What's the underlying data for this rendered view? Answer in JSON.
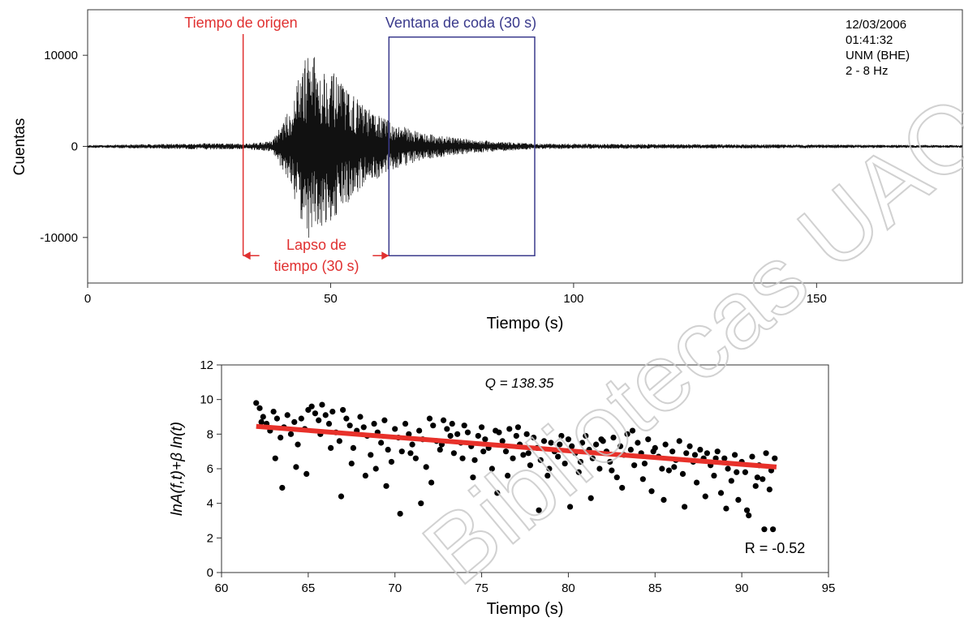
{
  "chart_data": [
    {
      "type": "line",
      "ylabel": "Cuentas",
      "xlabel": "Tiempo (s)",
      "xlim": [
        0,
        180
      ],
      "ylim": [
        -15000,
        15000
      ],
      "x_ticks": [
        0,
        50,
        100,
        150
      ],
      "y_ticks": [
        -10000,
        0,
        10000
      ],
      "x_tick_labels": [
        "0",
        "50",
        "100",
        "150"
      ],
      "y_tick_labels": [
        "-10000",
        "0",
        "10000"
      ],
      "grid": false,
      "info_lines": [
        "12/03/2006",
        "01:41:32",
        "UNM (BHE)",
        "2 - 8 Hz"
      ],
      "origin_time": {
        "x": 32,
        "label": "Tiempo de origen",
        "color": "#e03030"
      },
      "coda_window": {
        "x_start": 62,
        "x_end": 92,
        "y_low": -12000,
        "y_high": 12000,
        "label": "Ventana de coda (30 s)",
        "color": "#3a3a8c"
      },
      "lapse": {
        "x_start": 32,
        "x_end": 62,
        "y": -12000,
        "label_line1": "Lapso de",
        "label_line2": "tiempo (30 s)",
        "color": "#e03030"
      },
      "trace_envelope": {
        "x": [
          0,
          25,
          32,
          38,
          42,
          44,
          46,
          48,
          50,
          52,
          55,
          58,
          60,
          62,
          66,
          70,
          75,
          80,
          86,
          92,
          180
        ],
        "amplitude": [
          150,
          350,
          300,
          600,
          4500,
          9000,
          10500,
          9000,
          8500,
          7000,
          5500,
          4000,
          3500,
          2800,
          2000,
          1400,
          1000,
          700,
          500,
          300,
          150
        ]
      }
    },
    {
      "type": "scatter",
      "title": "Q = 138.35",
      "annotation": "R = -0.52",
      "ylabel": "lnA(f,t)+β ln(t)",
      "xlabel": "Tiempo (s)",
      "xlim": [
        60,
        95
      ],
      "ylim": [
        0,
        12
      ],
      "x_ticks": [
        60,
        65,
        70,
        75,
        80,
        85,
        90,
        95
      ],
      "y_ticks": [
        0,
        2,
        4,
        6,
        8,
        10,
        12
      ],
      "x_tick_labels": [
        "60",
        "65",
        "70",
        "75",
        "80",
        "85",
        "90",
        "95"
      ],
      "y_tick_labels": [
        "0",
        "2",
        "4",
        "6",
        "8",
        "10",
        "12"
      ],
      "grid": false,
      "fit_line": {
        "x": [
          62,
          92
        ],
        "y": [
          8.45,
          6.1
        ],
        "color": "#e8312a"
      },
      "points": [
        [
          62.0,
          9.8
        ],
        [
          62.2,
          9.5
        ],
        [
          62.4,
          9.0
        ],
        [
          62.6,
          8.6
        ],
        [
          62.8,
          8.2
        ],
        [
          63.0,
          9.3
        ],
        [
          63.2,
          8.9
        ],
        [
          63.4,
          7.8
        ],
        [
          63.6,
          8.4
        ],
        [
          63.8,
          9.1
        ],
        [
          64.0,
          8.0
        ],
        [
          64.2,
          8.7
        ],
        [
          64.4,
          7.4
        ],
        [
          64.6,
          8.9
        ],
        [
          64.8,
          8.3
        ],
        [
          65.0,
          9.4
        ],
        [
          65.2,
          9.6
        ],
        [
          65.4,
          9.2
        ],
        [
          65.6,
          8.8
        ],
        [
          65.8,
          9.7
        ],
        [
          66.0,
          9.1
        ],
        [
          66.2,
          8.6
        ],
        [
          66.4,
          9.3
        ],
        [
          66.6,
          8.1
        ],
        [
          66.8,
          7.6
        ],
        [
          67.0,
          9.4
        ],
        [
          67.2,
          8.9
        ],
        [
          67.4,
          8.5
        ],
        [
          67.6,
          7.2
        ],
        [
          67.8,
          8.2
        ],
        [
          68.0,
          9.0
        ],
        [
          68.2,
          8.4
        ],
        [
          68.4,
          7.9
        ],
        [
          68.6,
          6.8
        ],
        [
          68.8,
          8.6
        ],
        [
          69.0,
          8.1
        ],
        [
          69.2,
          7.5
        ],
        [
          69.4,
          8.8
        ],
        [
          69.6,
          7.1
        ],
        [
          69.8,
          6.4
        ],
        [
          70.0,
          8.3
        ],
        [
          70.2,
          7.8
        ],
        [
          70.4,
          7.0
        ],
        [
          70.6,
          8.6
        ],
        [
          70.8,
          8.0
        ],
        [
          71.0,
          7.4
        ],
        [
          71.2,
          6.6
        ],
        [
          71.4,
          8.2
        ],
        [
          71.6,
          7.7
        ],
        [
          71.8,
          6.1
        ],
        [
          72.0,
          8.9
        ],
        [
          72.2,
          8.5
        ],
        [
          72.4,
          7.6
        ],
        [
          72.6,
          7.1
        ],
        [
          72.8,
          8.8
        ],
        [
          73.0,
          8.3
        ],
        [
          73.2,
          7.9
        ],
        [
          73.4,
          6.9
        ],
        [
          73.6,
          8.0
        ],
        [
          73.8,
          7.5
        ],
        [
          74.0,
          8.5
        ],
        [
          74.2,
          8.1
        ],
        [
          74.4,
          7.3
        ],
        [
          74.6,
          6.5
        ],
        [
          74.8,
          7.9
        ],
        [
          75.0,
          8.4
        ],
        [
          75.2,
          7.7
        ],
        [
          75.4,
          7.2
        ],
        [
          75.6,
          6.0
        ],
        [
          75.8,
          8.2
        ],
        [
          76.0,
          8.1
        ],
        [
          76.2,
          7.6
        ],
        [
          76.4,
          7.0
        ],
        [
          76.6,
          8.3
        ],
        [
          76.8,
          6.6
        ],
        [
          77.0,
          7.9
        ],
        [
          77.2,
          7.4
        ],
        [
          77.4,
          6.8
        ],
        [
          77.6,
          8.0
        ],
        [
          77.8,
          6.2
        ],
        [
          78.0,
          7.8
        ],
        [
          78.2,
          7.2
        ],
        [
          78.4,
          6.5
        ],
        [
          78.6,
          7.6
        ],
        [
          78.8,
          5.6
        ],
        [
          79.0,
          7.5
        ],
        [
          79.2,
          7.0
        ],
        [
          79.4,
          6.7
        ],
        [
          79.6,
          7.9
        ],
        [
          79.8,
          6.3
        ],
        [
          80.0,
          7.7
        ],
        [
          80.2,
          7.3
        ],
        [
          80.4,
          6.9
        ],
        [
          80.6,
          5.8
        ],
        [
          80.8,
          7.5
        ],
        [
          81.0,
          7.9
        ],
        [
          81.2,
          7.1
        ],
        [
          81.4,
          6.6
        ],
        [
          81.6,
          7.4
        ],
        [
          81.8,
          6.0
        ],
        [
          82.0,
          7.6
        ],
        [
          82.2,
          7.0
        ],
        [
          82.4,
          6.4
        ],
        [
          82.6,
          7.8
        ],
        [
          82.8,
          5.5
        ],
        [
          83.0,
          7.3
        ],
        [
          83.2,
          6.8
        ],
        [
          83.4,
          8.0
        ],
        [
          83.6,
          7.1
        ],
        [
          83.8,
          6.2
        ],
        [
          84.0,
          7.5
        ],
        [
          84.2,
          6.9
        ],
        [
          84.4,
          6.3
        ],
        [
          84.6,
          7.7
        ],
        [
          84.8,
          4.7
        ],
        [
          85.0,
          7.2
        ],
        [
          85.2,
          6.7
        ],
        [
          85.4,
          6.0
        ],
        [
          85.6,
          7.4
        ],
        [
          85.8,
          5.9
        ],
        [
          86.0,
          7.0
        ],
        [
          86.2,
          6.5
        ],
        [
          86.4,
          7.6
        ],
        [
          86.6,
          5.7
        ],
        [
          86.8,
          6.9
        ],
        [
          87.0,
          7.3
        ],
        [
          87.2,
          6.4
        ],
        [
          87.4,
          5.2
        ],
        [
          87.6,
          7.1
        ],
        [
          87.8,
          6.6
        ],
        [
          88.0,
          6.9
        ],
        [
          88.2,
          6.2
        ],
        [
          88.4,
          5.6
        ],
        [
          88.6,
          7.0
        ],
        [
          88.8,
          4.6
        ],
        [
          89.0,
          6.6
        ],
        [
          89.2,
          6.0
        ],
        [
          89.4,
          5.3
        ],
        [
          89.6,
          6.8
        ],
        [
          89.8,
          4.2
        ],
        [
          90.0,
          6.4
        ],
        [
          90.2,
          5.8
        ],
        [
          90.4,
          3.3
        ],
        [
          90.6,
          6.7
        ],
        [
          90.8,
          5.0
        ],
        [
          91.0,
          6.2
        ],
        [
          91.2,
          5.4
        ],
        [
          91.4,
          6.9
        ],
        [
          91.6,
          4.8
        ],
        [
          91.8,
          2.5
        ],
        [
          62.3,
          8.7
        ],
        [
          63.1,
          6.6
        ],
        [
          63.5,
          4.9
        ],
        [
          64.3,
          6.1
        ],
        [
          64.9,
          5.7
        ],
        [
          65.7,
          8.0
        ],
        [
          66.3,
          7.2
        ],
        [
          66.9,
          4.4
        ],
        [
          67.5,
          6.3
        ],
        [
          68.3,
          5.6
        ],
        [
          68.9,
          6.0
        ],
        [
          69.5,
          5.0
        ],
        [
          70.3,
          3.4
        ],
        [
          70.9,
          6.9
        ],
        [
          71.5,
          4.0
        ],
        [
          72.1,
          5.2
        ],
        [
          72.7,
          7.4
        ],
        [
          73.3,
          8.6
        ],
        [
          73.9,
          6.6
        ],
        [
          74.5,
          5.5
        ],
        [
          75.1,
          7.0
        ],
        [
          75.9,
          4.6
        ],
        [
          76.5,
          5.6
        ],
        [
          77.1,
          8.4
        ],
        [
          77.7,
          6.9
        ],
        [
          78.3,
          3.6
        ],
        [
          78.9,
          6.0
        ],
        [
          79.5,
          7.4
        ],
        [
          80.1,
          3.8
        ],
        [
          80.7,
          6.4
        ],
        [
          81.3,
          4.3
        ],
        [
          81.9,
          7.7
        ],
        [
          82.5,
          5.9
        ],
        [
          83.1,
          4.9
        ],
        [
          83.7,
          8.2
        ],
        [
          84.3,
          5.4
        ],
        [
          84.9,
          7.0
        ],
        [
          85.5,
          4.2
        ],
        [
          86.1,
          6.1
        ],
        [
          86.7,
          3.8
        ],
        [
          87.3,
          6.8
        ],
        [
          87.9,
          4.4
        ],
        [
          88.5,
          6.6
        ],
        [
          89.1,
          3.7
        ],
        [
          89.7,
          5.8
        ],
        [
          90.3,
          3.6
        ],
        [
          90.9,
          5.5
        ],
        [
          91.3,
          2.5
        ],
        [
          91.7,
          5.9
        ],
        [
          91.9,
          6.6
        ]
      ]
    }
  ],
  "watermark": "Bibliotecas UAQ"
}
